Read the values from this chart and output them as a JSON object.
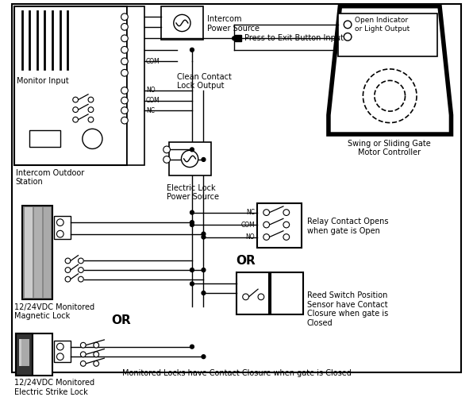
{
  "bg_color": "#ffffff",
  "labels": {
    "monitor_input": "Monitor Input",
    "intercom_outdoor": "Intercom Outdoor\nStation",
    "intercom_power": "Intercom\nPower Source",
    "press_exit": "Press to Exit Button Input",
    "clean_contact": "Clean Contact\nLock Output",
    "electric_lock": "Electric Lock\nPower Source",
    "magnetic_lock": "12/24VDC Monitored\nMagnetic Lock",
    "electric_strike": "12/24VDC Monitored\nElectric Strike Lock",
    "swing_gate": "Swing or Sliding Gate\nMotor Controller",
    "open_indicator": "Open Indicator\nor Light Output",
    "relay_contact": "Relay Contact Opens\nwhen gate is Open",
    "reed_switch": "Reed Switch Position\nSensor have Contact\nClosure when gate is\nClosed",
    "or1": "OR",
    "or2": "OR",
    "nc": "NC",
    "com_lbl": "COM",
    "no_lbl": "NO",
    "footer": "Monitored Locks have Contact Closure when gate is Closed"
  }
}
